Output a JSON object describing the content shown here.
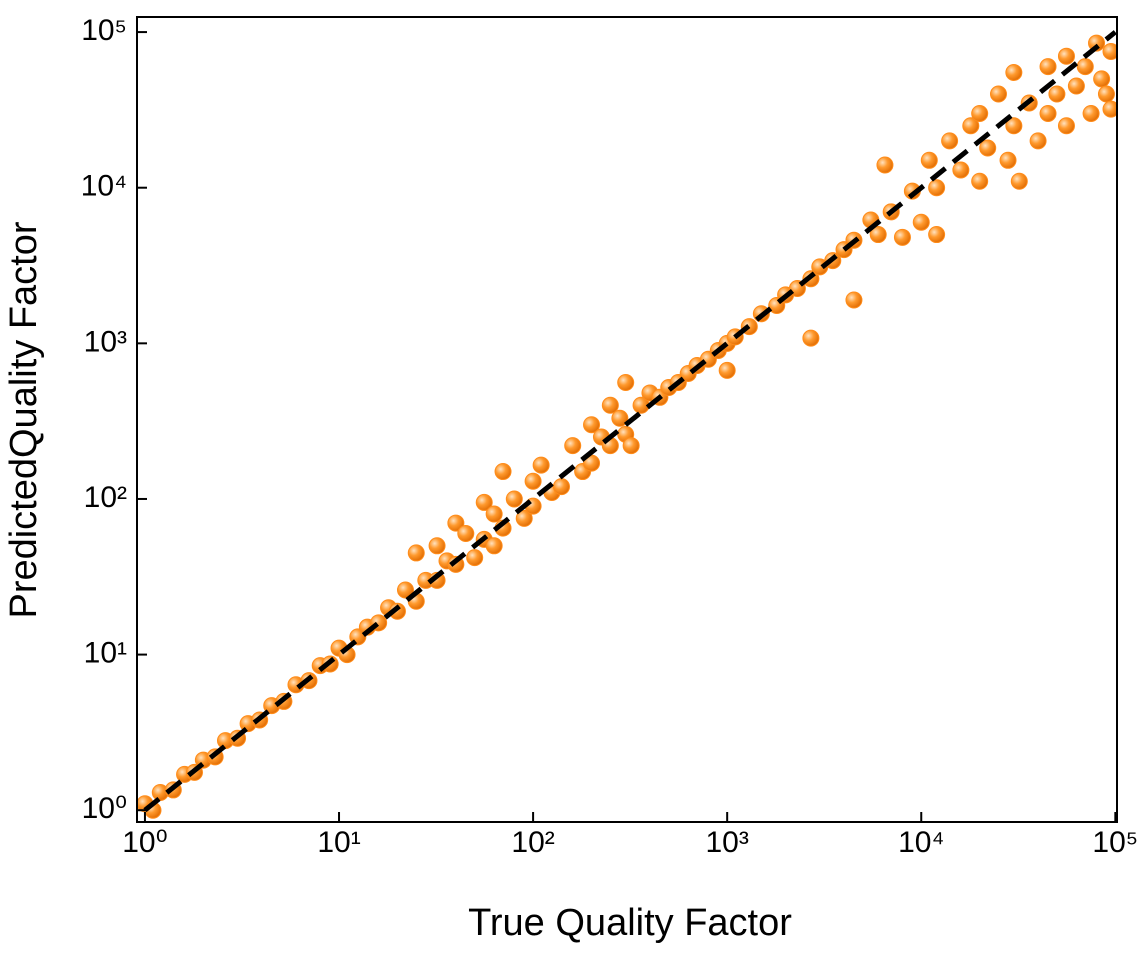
{
  "chart_data": {
    "type": "scatter",
    "x_label": "True Quality Factor",
    "y_label": "PredictedQuality Factor",
    "xscale": "log",
    "yscale": "log",
    "xlim": [
      0.91,
      102000
    ],
    "ylim": [
      0.84,
      125000
    ],
    "xticks": [
      {
        "value": 1,
        "label": "10⁰"
      },
      {
        "value": 10,
        "label": "10¹"
      },
      {
        "value": 100,
        "label": "10²"
      },
      {
        "value": 1000,
        "label": "10³"
      },
      {
        "value": 10000,
        "label": "10⁴"
      },
      {
        "value": 100000,
        "label": "10⁵"
      }
    ],
    "yticks": [
      {
        "value": 1,
        "label": "10⁰"
      },
      {
        "value": 10,
        "label": "10¹"
      },
      {
        "value": 100,
        "label": "10²"
      },
      {
        "value": 1000,
        "label": "10³"
      },
      {
        "value": 10000,
        "label": "10⁴"
      },
      {
        "value": 100000,
        "label": "10⁵"
      }
    ],
    "color": "#ff8c1a",
    "x": [
      1,
      1.1,
      1.2,
      1.4,
      1.6,
      1.8,
      2,
      2.3,
      2.6,
      3,
      3.4,
      3.9,
      4.5,
      5.2,
      6,
      7,
      8,
      9,
      10,
      11,
      12.5,
      14,
      16,
      18,
      20,
      22,
      25,
      25,
      28,
      32,
      32,
      36,
      40,
      40,
      45,
      50,
      56,
      56,
      63,
      63,
      70,
      70,
      80,
      90,
      100,
      100,
      110,
      125,
      140,
      160,
      180,
      200,
      200,
      225,
      250,
      250,
      280,
      300,
      300,
      320,
      360,
      400,
      450,
      500,
      560,
      630,
      700,
      800,
      900,
      1000,
      1000,
      1100,
      1300,
      1500,
      1800,
      2000,
      2300,
      2700,
      2700,
      3000,
      3500,
      4000,
      4500,
      4500,
      5500,
      6000,
      6500,
      7000,
      8000,
      9000,
      10000,
      11000,
      12000,
      12000,
      14000,
      16000,
      18000,
      20000,
      20000,
      22000,
      25000,
      28000,
      30000,
      30000,
      32000,
      36000,
      40000,
      45000,
      45000,
      50000,
      56000,
      56000,
      63000,
      70000,
      75000,
      80000,
      85000,
      90000,
      95000,
      95000
    ],
    "values": [
      1.1,
      1.0,
      1.3,
      1.35,
      1.7,
      1.75,
      2.1,
      2.2,
      2.8,
      2.9,
      3.6,
      3.8,
      4.7,
      5.0,
      6.4,
      6.8,
      8.5,
      8.7,
      11,
      10,
      13,
      15,
      16,
      20,
      19,
      26,
      45,
      22,
      30,
      50,
      30,
      40,
      70,
      38,
      60,
      42,
      95,
      55,
      80,
      50,
      150,
      65,
      100,
      75,
      130,
      90,
      165,
      110,
      120,
      220,
      150,
      300,
      170,
      250,
      400,
      220,
      330,
      560,
      260,
      220,
      400,
      480,
      450,
      520,
      560,
      640,
      720,
      790,
      900,
      670,
      1000,
      1100,
      1280,
      1550,
      1750,
      2050,
      2250,
      1080,
      2600,
      3100,
      3400,
      4000,
      1900,
      4600,
      6200,
      5000,
      14000,
      7000,
      4800,
      9500,
      6000,
      15000,
      5000,
      10000,
      20000,
      13000,
      25000,
      11000,
      30000,
      18000,
      40000,
      15000,
      55000,
      25000,
      11000,
      35000,
      20000,
      60000,
      30000,
      40000,
      70000,
      25000,
      45000,
      60000,
      30000,
      85000,
      50000,
      40000,
      32000,
      75000
    ],
    "reference_line": {
      "x": [
        1,
        100000
      ],
      "values": [
        1,
        100000
      ],
      "color": "#000000"
    }
  }
}
